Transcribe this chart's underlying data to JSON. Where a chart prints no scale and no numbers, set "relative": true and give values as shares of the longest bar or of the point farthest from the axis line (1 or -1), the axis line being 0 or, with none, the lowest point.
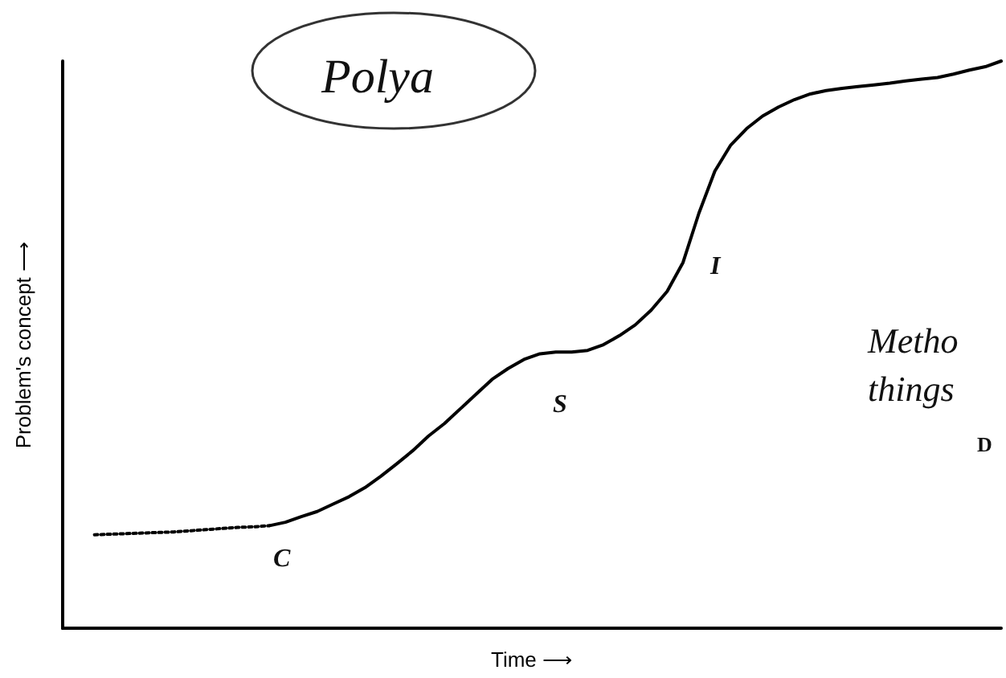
{
  "chart_data": {
    "type": "line",
    "relative": true,
    "xlabel": "Time ⟶",
    "ylabel": "Problem's concept ⟶",
    "categories": [
      null,
      null,
      null,
      null,
      null,
      null,
      null,
      null,
      null,
      null,
      null,
      null,
      null,
      null,
      null,
      null,
      null,
      null,
      null,
      null,
      null,
      null,
      null,
      null,
      null,
      null,
      null,
      null,
      null,
      null,
      null,
      null,
      null,
      null,
      null,
      null,
      null,
      null,
      null,
      null,
      null,
      null,
      null,
      null,
      null,
      null,
      null,
      null,
      null,
      null,
      null,
      null,
      null,
      null,
      null,
      null,
      null,
      null,
      null,
      null
    ],
    "series": [
      {
        "color": "#000000",
        "line_style": "dotted",
        "values": [
          null,
          null,
          0.165,
          0.166,
          0.167,
          0.168,
          0.169,
          0.17,
          0.172,
          0.174,
          0.176,
          0.178,
          0.179,
          0.181,
          null,
          null,
          null,
          null,
          null,
          null,
          null,
          null,
          null,
          null,
          null,
          null,
          null,
          null,
          null,
          null,
          null,
          null,
          null,
          null,
          null,
          null,
          null,
          null,
          null,
          null,
          null,
          null,
          null,
          null,
          null,
          null,
          null,
          null,
          null,
          null,
          null,
          null,
          null,
          null,
          null,
          null,
          null,
          null,
          null,
          null
        ]
      },
      {
        "color": "#000000",
        "line_style": "solid",
        "values": [
          null,
          null,
          null,
          null,
          null,
          null,
          null,
          null,
          null,
          null,
          null,
          null,
          null,
          0.181,
          0.187,
          0.197,
          0.206,
          0.219,
          0.232,
          0.248,
          0.268,
          0.29,
          0.313,
          0.339,
          0.361,
          0.387,
          0.413,
          0.439,
          0.458,
          0.474,
          0.484,
          0.487,
          0.487,
          0.49,
          0.5,
          0.516,
          0.535,
          0.561,
          0.594,
          0.645,
          0.732,
          0.806,
          0.852,
          0.881,
          0.903,
          0.919,
          0.932,
          0.942,
          0.948,
          0.952,
          0.955,
          0.958,
          0.961,
          0.965,
          0.968,
          0.971,
          0.977,
          0.984,
          0.99,
          1
        ]
      }
    ],
    "marker": "none",
    "grid": false,
    "annotations": [
      "Polya",
      "C",
      "S",
      "I",
      "Metho",
      "things",
      "D"
    ]
  }
}
